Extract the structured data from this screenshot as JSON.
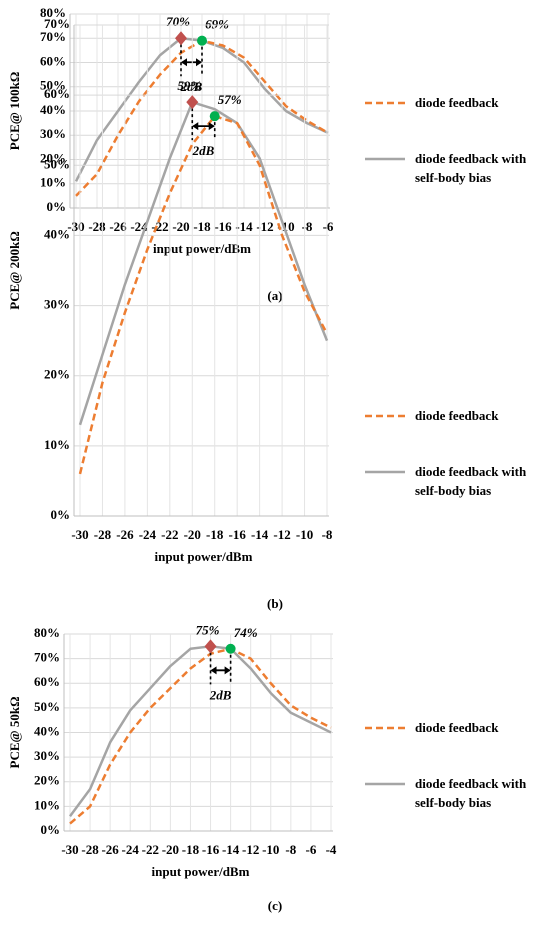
{
  "chart_data": [
    {
      "type": "line",
      "caption": "(a)",
      "ylabel": "PCE@ 100kΩ",
      "xlabel": "input power/dBm",
      "x": [
        -30,
        -28,
        -26,
        -24,
        -22,
        -20,
        -18,
        -16,
        -14,
        -12,
        -10,
        -8,
        -6
      ],
      "series": [
        {
          "name": "diode feedback",
          "color": "#ed7d31",
          "dash": true,
          "values": [
            5,
            14,
            30,
            44,
            55,
            64,
            69,
            67,
            62,
            52,
            42,
            36,
            31
          ]
        },
        {
          "name": "diode feedback with self-body bias",
          "color": "#a5a5a5",
          "dash": false,
          "values": [
            11,
            28,
            40,
            52,
            63,
            70,
            69,
            66,
            60,
            49,
            40,
            35,
            31
          ]
        }
      ],
      "peaks": [
        {
          "x": -20,
          "value": 70,
          "label": "70%",
          "color": "#c0504d",
          "marker": "diamond"
        },
        {
          "x": -18,
          "value": 69,
          "label": "69%",
          "color": "#00b050",
          "marker": "circle"
        }
      ],
      "span": {
        "x": [
          -20,
          -18
        ],
        "label": "2dB"
      },
      "xlim": [
        -30,
        -6
      ],
      "xticks": [
        -30,
        -28,
        -26,
        -24,
        -22,
        -20,
        -18,
        -16,
        -14,
        -12,
        -10,
        -8,
        -6
      ],
      "ylim": [
        0,
        80
      ],
      "yticks": [
        {
          "value": 0,
          "label": "0%"
        },
        {
          "value": 10,
          "label": "10%"
        },
        {
          "value": 20,
          "label": "20%"
        },
        {
          "value": 30,
          "label": "30%"
        },
        {
          "value": 40,
          "label": "40%"
        },
        {
          "value": 50,
          "label": "50%"
        },
        {
          "value": 60,
          "label": "60%"
        },
        {
          "value": 70,
          "label": "70%"
        },
        {
          "value": 80,
          "label": "80%"
        }
      ],
      "grid": true
    },
    {
      "type": "line",
      "caption": "(b)",
      "ylabel": "PCE@ 200kΩ",
      "xlabel": "input power/dBm",
      "x": [
        -30,
        -28,
        -26,
        -24,
        -22,
        -20,
        -18,
        -16,
        -14,
        -12,
        -10,
        -8
      ],
      "series": [
        {
          "name": "diode feedback",
          "color": "#ed7d31",
          "dash": true,
          "values": [
            6,
            19,
            29,
            38,
            46,
            53,
            57,
            56,
            50,
            40,
            32,
            26
          ]
        },
        {
          "name": "diode feedback with self-body bias",
          "color": "#a5a5a5",
          "dash": false,
          "values": [
            13,
            23,
            33,
            42,
            51,
            59,
            58,
            56,
            51,
            42,
            33,
            25
          ]
        }
      ],
      "peaks": [
        {
          "x": -20,
          "value": 59,
          "label": "59%",
          "color": "#c0504d",
          "marker": "diamond"
        },
        {
          "x": -18,
          "value": 57,
          "label": "57%",
          "color": "#00b050",
          "marker": "circle"
        }
      ],
      "span": {
        "x": [
          -20,
          -18
        ],
        "label": "2dB"
      },
      "xlim": [
        -30,
        -8
      ],
      "xticks": [
        -30,
        -28,
        -26,
        -24,
        -22,
        -20,
        -18,
        -16,
        -14,
        -12,
        -10,
        -8
      ],
      "ylim": [
        0,
        70
      ],
      "yticks": [
        {
          "value": 0,
          "label": "0%"
        },
        {
          "value": 10,
          "label": "10%"
        },
        {
          "value": 20,
          "label": "20%"
        },
        {
          "value": 30,
          "label": "30%"
        },
        {
          "value": 40,
          "label": "40%"
        },
        {
          "value": 50,
          "label": "50%"
        },
        {
          "value": 60,
          "label": "60%"
        },
        {
          "value": 70,
          "label": "70%"
        }
      ],
      "grid": true
    },
    {
      "type": "line",
      "caption": "(c)",
      "ylabel": "PCE@ 50kΩ",
      "xlabel": "input power/dBm",
      "x": [
        -30,
        -28,
        -26,
        -24,
        -22,
        -20,
        -18,
        -16,
        -14,
        -12,
        -10,
        -8,
        -6,
        -4
      ],
      "series": [
        {
          "name": "diode feedback",
          "color": "#ed7d31",
          "dash": true,
          "values": [
            3,
            10,
            27,
            40,
            50,
            58,
            66,
            72,
            74,
            70,
            60,
            51,
            46,
            42
          ]
        },
        {
          "name": "diode feedback with self-body bias",
          "color": "#a5a5a5",
          "dash": false,
          "values": [
            6,
            17,
            36,
            49,
            58,
            67,
            74,
            75,
            74,
            66,
            56,
            48,
            44,
            40
          ]
        }
      ],
      "peaks": [
        {
          "x": -16,
          "value": 75,
          "label": "75%",
          "color": "#c0504d",
          "marker": "diamond"
        },
        {
          "x": -14,
          "value": 74,
          "label": "74%",
          "color": "#00b050",
          "marker": "circle"
        }
      ],
      "span": {
        "x": [
          -16,
          -14
        ],
        "label": "2dB"
      },
      "xlim": [
        -30,
        -4
      ],
      "xticks": [
        -30,
        -28,
        -26,
        -24,
        -22,
        -20,
        -18,
        -16,
        -14,
        -12,
        -10,
        -8,
        -6,
        -4
      ],
      "ylim": [
        0,
        80
      ],
      "yticks": [
        {
          "value": 0,
          "label": "0%"
        },
        {
          "value": 10,
          "label": "10%"
        },
        {
          "value": 20,
          "label": "20%"
        },
        {
          "value": 30,
          "label": "30%"
        },
        {
          "value": 40,
          "label": "40%"
        },
        {
          "value": 50,
          "label": "50%"
        },
        {
          "value": 60,
          "label": "60%"
        },
        {
          "value": 70,
          "label": "70%"
        },
        {
          "value": 80,
          "label": "80%"
        }
      ],
      "grid": true
    }
  ]
}
